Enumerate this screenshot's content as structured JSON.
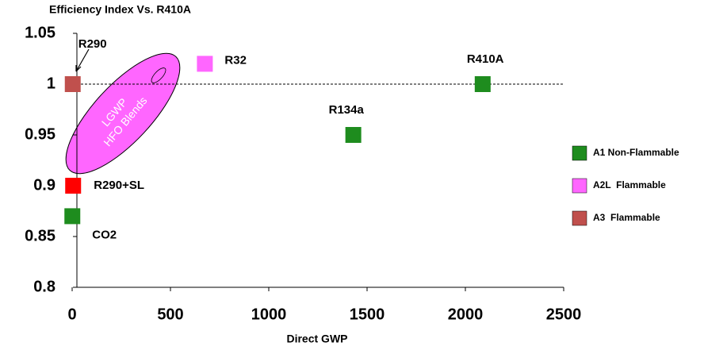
{
  "chart_data": {
    "type": "scatter",
    "title": "Efficiency Index Vs. R410A",
    "x_label": "Direct GWP",
    "xlim": [
      0,
      2500
    ],
    "xticks": [
      0,
      500,
      1000,
      1500,
      2000,
      2500
    ],
    "ylim": [
      0.8,
      1.05
    ],
    "yticks": [
      0.8,
      0.85,
      0.9,
      0.95,
      1,
      1.05
    ],
    "reference_line": 1,
    "annotation": [
      "LGWP",
      "HFO Blends"
    ],
    "series": [
      {
        "name": "A1 Non-Flammable",
        "color": "#1e8c1e",
        "x": [
          2088,
          1430,
          1
        ],
        "values": [
          1,
          0.95,
          0.87
        ],
        "labels": [
          "R410A",
          "R134a",
          "CO2"
        ]
      },
      {
        "name": "A2L  Flammable",
        "color": "#ff66ff",
        "x": [
          675
        ],
        "values": [
          1.02
        ],
        "labels": [
          "R32"
        ]
      },
      {
        "name": "A3  Flammable",
        "color": "#c0504d",
        "x": [
          3
        ],
        "values": [
          1
        ],
        "labels": [
          "R290"
        ]
      },
      {
        "color": "#ff0000",
        "x": [
          5
        ],
        "values": [
          0.9
        ],
        "labels": [
          "R290+SL"
        ]
      }
    ]
  }
}
